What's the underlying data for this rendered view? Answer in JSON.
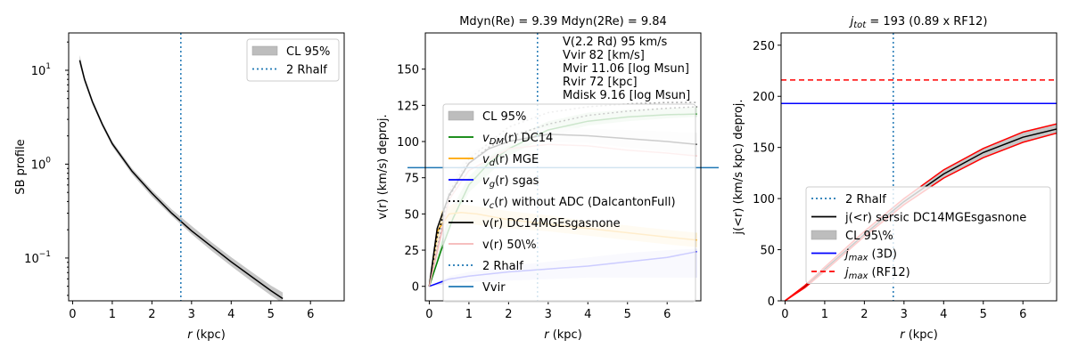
{
  "chart_data": [
    {
      "type": "line",
      "title": "",
      "xlabel": "r (kpc)",
      "ylabel": "SB profile",
      "xlim": [
        -0.1,
        6.85
      ],
      "yscale": "log",
      "ylim": [
        0.035,
        25
      ],
      "xticks": [
        0,
        1,
        2,
        3,
        4,
        5,
        6
      ],
      "yticks": [
        {
          "value": 0.1,
          "label": "10"
        },
        {
          "value": 1,
          "label": "10"
        },
        {
          "value": 10,
          "label": "10"
        }
      ],
      "yticks_exp": [
        "−1",
        "0",
        "1"
      ],
      "vline": 2.73,
      "series": [
        {
          "name": "CL 95%",
          "kind": "band",
          "color": "#bdbdbd",
          "x": [
            0.18,
            0.3,
            0.5,
            0.75,
            1.0,
            1.5,
            2.0,
            2.5,
            3.0,
            3.5,
            4.0,
            4.5,
            5.0,
            5.3
          ],
          "lower": [
            11.5,
            7.4,
            4.3,
            2.5,
            1.55,
            0.78,
            0.45,
            0.28,
            0.18,
            0.12,
            0.082,
            0.057,
            0.04,
            0.033
          ],
          "upper": [
            14.5,
            8.6,
            4.9,
            2.8,
            1.75,
            0.9,
            0.53,
            0.33,
            0.22,
            0.148,
            0.102,
            0.072,
            0.051,
            0.043
          ]
        },
        {
          "name": "SB",
          "kind": "line",
          "color": "#000000",
          "x": [
            0.18,
            0.3,
            0.5,
            0.75,
            1.0,
            1.5,
            2.0,
            2.5,
            3.0,
            3.5,
            4.0,
            4.5,
            5.0,
            5.3
          ],
          "y": [
            12.8,
            8.0,
            4.6,
            2.65,
            1.65,
            0.84,
            0.49,
            0.3,
            0.195,
            0.133,
            0.091,
            0.064,
            0.045,
            0.037
          ]
        }
      ],
      "legend": [
        {
          "label": "CL 95%",
          "style": "band",
          "color": "#bdbdbd"
        },
        {
          "label": "2 Rhalf",
          "style": "dotted",
          "color": "#1f77b4"
        }
      ]
    },
    {
      "type": "line",
      "title": "Mdyn(Re) = 9.39  Mdyn(2Re) = 9.84",
      "xlabel": "r (kpc)",
      "ylabel": "v(r) (km/s) deproj.",
      "xlim": [
        -0.1,
        6.85
      ],
      "ylim": [
        -10,
        175
      ],
      "xticks": [
        0,
        1,
        2,
        3,
        4,
        5,
        6
      ],
      "yticks": [
        0,
        25,
        50,
        75,
        100,
        125,
        150
      ],
      "vline": 2.73,
      "hline": 82,
      "annotations": [
        "V(2.2 Rd) 95 km/s",
        "Vvir 82 [km/s]",
        "Mvir 11.06 [log Msun]",
        "Rvir 72 [kpc]",
        "Mdisk 9.16 [log Msun]"
      ],
      "series": [
        {
          "name": "v_DM band",
          "kind": "band",
          "color": "#c8e6c8",
          "x": [
            0,
            0.5,
            1,
            2,
            3,
            4,
            5,
            6,
            6.75
          ],
          "lower": [
            0,
            40,
            65,
            90,
            104,
            111,
            114,
            116,
            117
          ],
          "upper": [
            0,
            50,
            76,
            102,
            114,
            120,
            122,
            123,
            124
          ]
        },
        {
          "name": "v_d band",
          "kind": "band",
          "color": "#fde6b0",
          "x": [
            0,
            0.3,
            0.6,
            1,
            2,
            3,
            4,
            5,
            6,
            6.75
          ],
          "lower": [
            0,
            42,
            45,
            43,
            40,
            38,
            35,
            32,
            29,
            27
          ],
          "upper": [
            0,
            52,
            57,
            56,
            52,
            49,
            45,
            42,
            39,
            37
          ]
        },
        {
          "name": "v_g band",
          "kind": "band",
          "color": "#dcdcf7",
          "x": [
            0,
            0.5,
            1,
            2,
            3,
            4,
            5,
            6,
            6.75
          ],
          "lower": [
            0,
            2,
            3,
            4,
            5,
            6,
            6,
            6,
            6
          ],
          "upper": [
            0,
            7,
            10,
            14,
            17,
            20,
            23,
            25,
            26
          ]
        },
        {
          "name": "v(r) 50% band",
          "kind": "band",
          "color": "#f0f0f0",
          "x": [
            0,
            0.5,
            1,
            2,
            3,
            4,
            5,
            6,
            6.75
          ],
          "lower": [
            0,
            62,
            82,
            97,
            100,
            99,
            96,
            93,
            90
          ],
          "upper": [
            0,
            72,
            92,
            106,
            110,
            109,
            108,
            107,
            106
          ]
        },
        {
          "name": "v_DM(r) DC14",
          "kind": "line",
          "color": "#008000",
          "x": [
            0,
            0.3,
            0.6,
            1,
            1.5,
            2,
            3,
            4,
            5,
            6,
            6.75
          ],
          "y": [
            0,
            25,
            47,
            70,
            85,
            95,
            108,
            114,
            117,
            118.5,
            119
          ]
        },
        {
          "name": "v_d(r) MGE",
          "kind": "line",
          "color": "#ffa500",
          "x": [
            0,
            0.2,
            0.5,
            0.8,
            1.2,
            2,
            3,
            4,
            5,
            6,
            6.75
          ],
          "y": [
            0,
            38,
            50,
            51,
            50,
            46,
            43,
            40,
            37,
            34,
            32
          ]
        },
        {
          "name": "v_g(r) sgas",
          "kind": "line",
          "color": "#0000ff",
          "x": [
            0,
            0.5,
            1,
            2,
            3,
            4,
            5,
            6,
            6.75
          ],
          "y": [
            0,
            5,
            7,
            10,
            12,
            14,
            17,
            20,
            24
          ]
        },
        {
          "name": "v_c(r) without ADC (DalcantonFull)",
          "kind": "line",
          "dash": "2,3",
          "color": "#000000",
          "x": [
            0,
            0.2,
            0.5,
            1,
            1.5,
            2,
            3,
            4,
            5,
            6,
            6.75
          ],
          "y": [
            0,
            35,
            62,
            85,
            96,
            103,
            112,
            118,
            121,
            123,
            124
          ]
        },
        {
          "name": "v_c grey dotted",
          "kind": "line",
          "dash": "2,3",
          "color": "#aaaaaa",
          "x": [
            0,
            0.5,
            1,
            2,
            3,
            4,
            5,
            6,
            6.75
          ],
          "y": [
            0,
            65,
            88,
            110,
            120,
            124,
            126,
            127,
            127
          ]
        },
        {
          "name": "v(r) DC14MGEsgasnone",
          "kind": "line",
          "color": "#000000",
          "x": [
            0,
            0.2,
            0.5,
            1,
            1.5,
            2,
            3,
            4,
            5,
            6,
            6.75
          ],
          "y": [
            0,
            40,
            63,
            85,
            95,
            100,
            105,
            104,
            102,
            100,
            98
          ]
        },
        {
          "name": "v(r) 50% edge",
          "kind": "line",
          "color": "#f4b6b6",
          "x": [
            0,
            0.5,
            1,
            2,
            3,
            4,
            5,
            6,
            6.75
          ],
          "y": [
            0,
            60,
            80,
            95,
            98,
            97,
            94,
            92,
            90
          ]
        }
      ],
      "legend": [
        {
          "label": "CL 95%",
          "style": "band",
          "color": "#bdbdbd"
        },
        {
          "label": "v_DM(r) DC14",
          "style": "solid",
          "color": "#008000"
        },
        {
          "label": "v_d(r) MGE",
          "style": "solid",
          "color": "#ffa500"
        },
        {
          "label": "v_g(r) sgas",
          "style": "solid",
          "color": "#0000ff"
        },
        {
          "label": "v_c(r) without ADC (DalcantonFull)",
          "style": "dotted",
          "color": "#000000"
        },
        {
          "label": "v(r) DC14MGEsgasnone",
          "style": "solid",
          "color": "#000000"
        },
        {
          "label": "v(r) 50\\%",
          "style": "solid",
          "color": "#f4b6b6"
        },
        {
          "label": "2 Rhalf",
          "style": "dotted",
          "color": "#1f77b4"
        },
        {
          "label": "Vvir",
          "style": "solid",
          "color": "#1f77b4"
        }
      ]
    },
    {
      "type": "line",
      "title": "j_tot = 193 (0.89 x RF12)",
      "xlabel": "r (kpc)",
      "ylabel": "j(<r) (km/s kpc) deproj.",
      "xlim": [
        -0.1,
        6.85
      ],
      "ylim": [
        0,
        262
      ],
      "xticks": [
        0,
        1,
        2,
        3,
        4,
        5,
        6
      ],
      "yticks": [
        0,
        50,
        100,
        150,
        200,
        250
      ],
      "vline": 2.73,
      "hlines": [
        {
          "value": 193,
          "color": "#0000ff",
          "dash": ""
        },
        {
          "value": 216,
          "color": "#ff0000",
          "dash": "6,4"
        }
      ],
      "series": [
        {
          "name": "CL 95%",
          "kind": "band",
          "color": "#bdbdbd",
          "x": [
            0,
            0.5,
            1,
            2,
            3,
            4,
            5,
            6,
            6.85
          ],
          "lower": [
            0,
            13,
            29,
            63,
            94,
            120,
            140,
            155,
            164
          ],
          "upper": [
            0,
            15,
            33,
            68,
            100,
            128,
            149,
            165,
            173
          ]
        },
        {
          "name": "j(<r) sersic DC14MGEsgasnone",
          "kind": "line",
          "color": "#000000",
          "x": [
            0,
            0.5,
            1,
            2,
            3,
            4,
            5,
            6,
            6.85
          ],
          "y": [
            0,
            14,
            31,
            65,
            97,
            124,
            145,
            160,
            168
          ]
        },
        {
          "name": "upper red",
          "kind": "line",
          "color": "#ff0000",
          "x": [
            0,
            0.5,
            1,
            2,
            3,
            4,
            5,
            6,
            6.85
          ],
          "y": [
            0,
            15,
            33,
            68,
            100,
            128,
            149,
            165,
            173
          ]
        },
        {
          "name": "lower red",
          "kind": "line",
          "color": "#ff0000",
          "x": [
            0,
            0.5,
            1,
            2,
            3,
            4,
            5,
            6,
            6.85
          ],
          "y": [
            0,
            13,
            29,
            63,
            94,
            120,
            140,
            155,
            164
          ]
        }
      ],
      "legend": [
        {
          "label": "2 Rhalf",
          "style": "dotted",
          "color": "#1f77b4"
        },
        {
          "label": "j(<r) sersic DC14MGEsgasnone",
          "style": "solid",
          "color": "#000000"
        },
        {
          "label": "CL 95\\%",
          "style": "band",
          "color": "#bdbdbd"
        },
        {
          "label": "j_max (3D)",
          "style": "solid",
          "color": "#0000ff"
        },
        {
          "label": "j_max (RF12)",
          "style": "dashed",
          "color": "#ff0000"
        }
      ]
    }
  ]
}
